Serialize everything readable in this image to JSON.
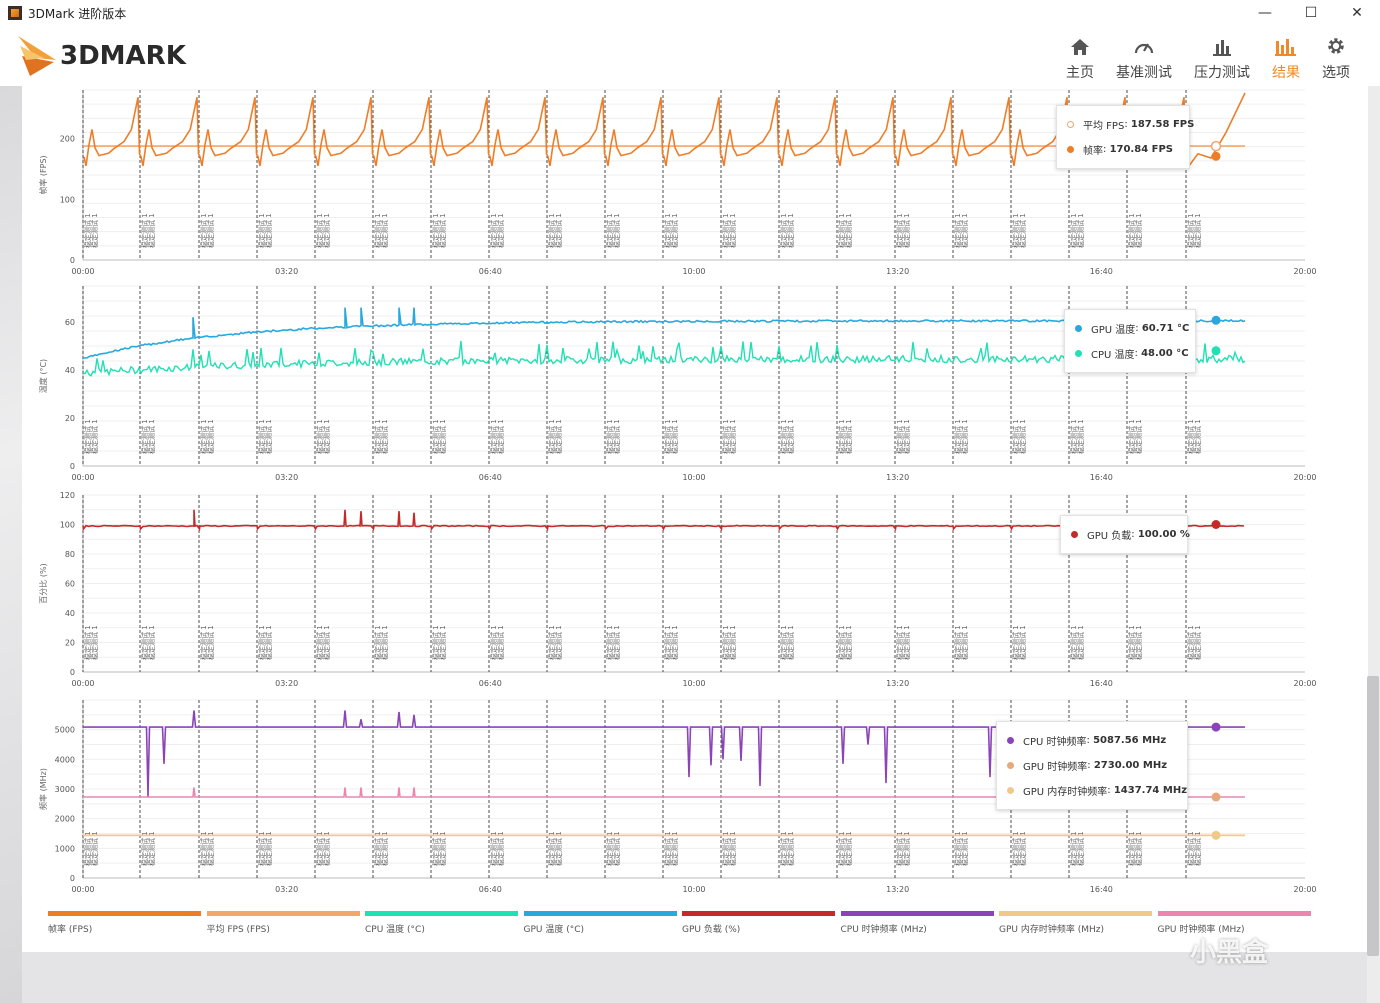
{
  "window": {
    "title": "3DMark 进阶版本",
    "min_label": "—",
    "max_label": "☐",
    "close_label": "✕"
  },
  "header": {
    "logo_text": "3DMARK",
    "nav": [
      {
        "label": "主页",
        "icon": "home-icon",
        "active": false
      },
      {
        "label": "基准测试",
        "icon": "gauge-icon",
        "active": false
      },
      {
        "label": "压力测试",
        "icon": "bars-icon",
        "active": false
      },
      {
        "label": "结果",
        "icon": "results-icon",
        "active": true
      },
      {
        "label": "选项",
        "icon": "gear-icon",
        "active": false
      }
    ]
  },
  "colors": {
    "fps": "#ee7d28",
    "avg_fps": "#f4a66a",
    "cpu_temp": "#21e0b4",
    "gpu_temp": "#27a9df",
    "gpu_load": "#c42a2a",
    "cpu_clock": "#8b43b8",
    "gpu_mem_clock": "#f0c98a",
    "gpu_clock": "#ec86b0",
    "accent": "#ef8a2a"
  },
  "loop_label": "稳定测试 1",
  "chart_data": [
    {
      "type": "line",
      "ylabel": "帧率 (FPS)",
      "ylim": [
        0,
        280
      ],
      "yticks": [
        "0",
        "100",
        "200"
      ],
      "xticks": [
        "00:00",
        "03:20",
        "06:40",
        "10:00",
        "13:20",
        "16:40",
        "20:00"
      ],
      "xlim_seconds": [
        0,
        1200
      ],
      "series": [
        {
          "name": "帧率",
          "key": "fps",
          "pattern": "sawtooth",
          "min": 155,
          "max": 270,
          "base": 175,
          "last": 170.84
        },
        {
          "name": "平均 FPS",
          "key": "avg_fps",
          "pattern": "flat",
          "value": 187.58
        }
      ],
      "tooltip": [
        {
          "label": "平均 FPS",
          "value": "187.58 FPS",
          "key": "avg_fps",
          "hollow": true
        },
        {
          "label": "帧率",
          "value": "170.84 FPS",
          "key": "fps",
          "hollow": false
        }
      ]
    },
    {
      "type": "line",
      "ylabel": "温度 (°C)",
      "ylim": [
        0,
        75
      ],
      "yticks": [
        "0",
        "20",
        "40",
        "60"
      ],
      "xticks": [
        "00:00",
        "03:20",
        "06:40",
        "10:00",
        "13:20",
        "16:40",
        "20:00"
      ],
      "series": [
        {
          "name": "GPU 温度",
          "key": "gpu_temp",
          "start": 45,
          "plateau": 60.5,
          "last": 60.71
        },
        {
          "name": "CPU 温度",
          "key": "cpu_temp",
          "start": 38,
          "plateau": 44,
          "last": 48.0
        }
      ],
      "tooltip": [
        {
          "label": "GPU 温度",
          "value": "60.71 °C",
          "key": "gpu_temp"
        },
        {
          "label": "CPU 温度",
          "value": "48.00 °C",
          "key": "cpu_temp"
        }
      ]
    },
    {
      "type": "line",
      "ylabel": "百分比 (%)",
      "ylim": [
        0,
        120
      ],
      "yticks": [
        "0",
        "20",
        "40",
        "60",
        "80",
        "100",
        "120"
      ],
      "xticks": [
        "00:00",
        "03:20",
        "06:40",
        "10:00",
        "13:20",
        "16:40",
        "20:00"
      ],
      "series": [
        {
          "name": "GPU 负载",
          "key": "gpu_load",
          "value": 99,
          "last": 100.0
        }
      ],
      "tooltip": [
        {
          "label": "GPU 负载",
          "value": "100.00 %",
          "key": "gpu_load"
        }
      ]
    },
    {
      "type": "line",
      "ylabel": "频率 (MHz)",
      "ylim": [
        0,
        6000
      ],
      "yticks": [
        "0",
        "1000",
        "2000",
        "3000",
        "4000",
        "5000"
      ],
      "xticks": [
        "00:00",
        "03:20",
        "06:40",
        "10:00",
        "13:20",
        "16:40",
        "20:00"
      ],
      "series": [
        {
          "name": "CPU 时钟频率",
          "key": "cpu_clock",
          "value": 5087.56
        },
        {
          "name": "GPU 时钟频率",
          "key": "gpu_clock",
          "value": 2730.0
        },
        {
          "name": "GPU 内存时钟频率",
          "key": "gpu_mem_clock",
          "value": 1437.74
        }
      ],
      "tooltip": [
        {
          "label": "CPU 时钟频率",
          "value": "5087.56 MHz",
          "key": "cpu_clock"
        },
        {
          "label": "GPU 时钟频率",
          "value": "2730.00 MHz",
          "key": "gpu_clock"
        },
        {
          "label": "GPU 内存时钟频率",
          "value": "1437.74 MHz",
          "key": "gpu_mem_clock"
        }
      ]
    }
  ],
  "bottom_legend": [
    {
      "label": "帧率 (FPS)",
      "key": "fps"
    },
    {
      "label": "平均 FPS (FPS)",
      "key": "avg_fps"
    },
    {
      "label": "CPU 温度 (°C)",
      "key": "cpu_temp"
    },
    {
      "label": "GPU 温度 (°C)",
      "key": "gpu_temp"
    },
    {
      "label": "GPU 负载 (%)",
      "key": "gpu_load"
    },
    {
      "label": "CPU 时钟频率 (MHz)",
      "key": "cpu_clock"
    },
    {
      "label": "GPU 内存时钟频率 (MHz)",
      "key": "gpu_mem_clock"
    },
    {
      "label": "GPU 时钟频率 (MHz)",
      "key": "gpu_clock"
    }
  ],
  "watermark": "小黑盒"
}
